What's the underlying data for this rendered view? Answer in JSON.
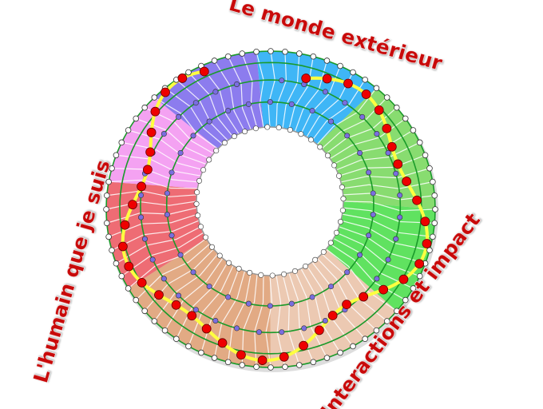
{
  "labels": {
    "top": "Le monde extérieur",
    "left": "L'humain que je suis",
    "right": "Interactions et impact"
  },
  "colors": {
    "label": "#c80a0a",
    "ring_lines": "#1a9a2a",
    "path": "#ffff40",
    "path_nodes": "#ee0000",
    "inner_nodes": "#7a6ee0",
    "edge_nodes": "#ffffff",
    "sectors": [
      "#3fb6f6",
      "#88dc70",
      "#60e260",
      "#ecc9b2",
      "#e2aa84",
      "#ee6c74",
      "#f4a2f2",
      "#8c7cee"
    ]
  }
}
